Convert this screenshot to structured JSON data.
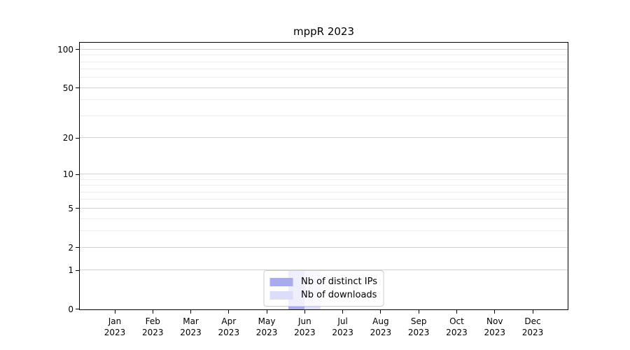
{
  "title": "mppR 2023",
  "chart_data": {
    "type": "bar",
    "title": "mppR 2023",
    "categories": [
      {
        "month": "Jan",
        "year": "2023"
      },
      {
        "month": "Feb",
        "year": "2023"
      },
      {
        "month": "Mar",
        "year": "2023"
      },
      {
        "month": "Apr",
        "year": "2023"
      },
      {
        "month": "May",
        "year": "2023"
      },
      {
        "month": "Jun",
        "year": "2023"
      },
      {
        "month": "Jul",
        "year": "2023"
      },
      {
        "month": "Aug",
        "year": "2023"
      },
      {
        "month": "Sep",
        "year": "2023"
      },
      {
        "month": "Oct",
        "year": "2023"
      },
      {
        "month": "Nov",
        "year": "2023"
      },
      {
        "month": "Dec",
        "year": "2023"
      }
    ],
    "series": [
      {
        "name": "Nb of distinct IPs",
        "color": "#a9abef",
        "values": [
          0,
          0,
          0,
          0,
          0,
          1,
          0,
          0,
          0,
          0,
          0,
          0
        ]
      },
      {
        "name": "Nb of downloads",
        "color": "#dcddf8",
        "values": [
          0,
          0,
          0,
          0,
          0,
          1,
          0,
          0,
          0,
          0,
          0,
          0
        ]
      }
    ],
    "yscale": "log1p",
    "ylim": [
      0,
      113
    ],
    "yticks_major": [
      0,
      1,
      2,
      5,
      10,
      20,
      50,
      100
    ],
    "yticks_minor": [
      3,
      4,
      6,
      7,
      8,
      9,
      30,
      40,
      60,
      70,
      80,
      90
    ],
    "grid": true,
    "legend_position": "lower center",
    "colors": {
      "grid_major": "#d2d2d2",
      "grid_minor": "#ededed",
      "axis": "#000000",
      "background": "#ffffff"
    }
  }
}
